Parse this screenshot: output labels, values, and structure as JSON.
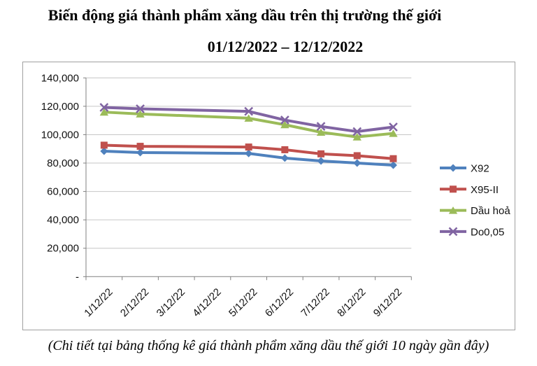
{
  "title": "Biến động giá thành phẩm xăng dầu trên thị trường thế giới",
  "subtitle": "01/12/2022 – 12/12/2022",
  "caption": "(Chi tiết tại bảng thống kê giá thành phẩm xăng dầu thế giới 10 ngày gần đây)",
  "chart_data": {
    "type": "line",
    "categories": [
      "1/12/22",
      "2/12/22",
      "3/12/22",
      "4/12/22",
      "5/12/22",
      "6/12/22",
      "7/12/22",
      "8/12/22",
      "9/12/22"
    ],
    "series": [
      {
        "name": "X92",
        "color": "#4F81BD",
        "marker": "diamond",
        "values": [
          88400,
          87400,
          null,
          null,
          86800,
          83500,
          81500,
          80000,
          78500
        ]
      },
      {
        "name": "X95-II",
        "color": "#C0504D",
        "marker": "square",
        "values": [
          92600,
          91800,
          null,
          null,
          91300,
          89400,
          86500,
          85200,
          83100
        ]
      },
      {
        "name": "Dầu hoả",
        "color": "#9BBB59",
        "marker": "triangle",
        "values": [
          115900,
          114600,
          null,
          null,
          111600,
          107000,
          101700,
          98400,
          100900
        ]
      },
      {
        "name": "Do0,05",
        "color": "#8064A2",
        "marker": "x",
        "values": [
          119200,
          118200,
          null,
          null,
          116400,
          110300,
          105800,
          102200,
          105400
        ]
      }
    ],
    "ylim": [
      0,
      140000
    ],
    "ytick_step": 20000,
    "ytick_labels": [
      "-",
      "20,000",
      "40,000",
      "60,000",
      "80,000",
      "100,000",
      "120,000",
      "140,000"
    ],
    "grid": true,
    "legend_position": "right",
    "gridline_color": "#c6c6c6",
    "axis_color": "#808080",
    "label_color": "#111111"
  }
}
